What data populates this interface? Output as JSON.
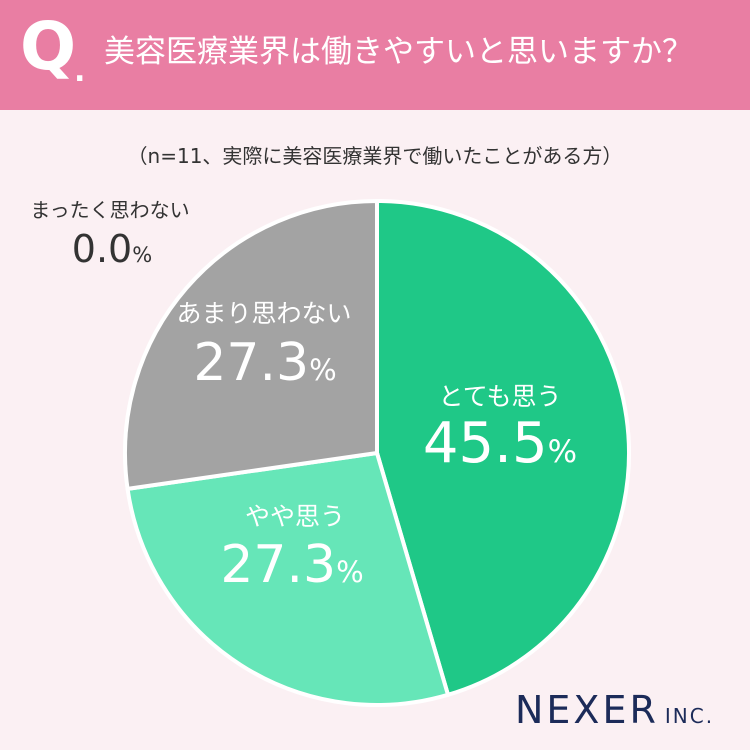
{
  "header": {
    "q_label": "Q",
    "q_dot": ".",
    "question": "美容医療業界は働きやすいと思いますか？"
  },
  "subtitle": "（n=11、実際に美容医療業界で働いたことがある方）",
  "brand": {
    "name": "NEXER",
    "suffix": "INC."
  },
  "colors": {
    "header_bg": "#e97ea3",
    "page_bg": "#fbf0f3",
    "label_dark": "#333333",
    "label_light": "#ffffff"
  },
  "chart_data": {
    "type": "pie",
    "unit": "%",
    "slices": [
      {
        "label": "とても思う",
        "value": 45.5,
        "display": "45.5",
        "color": "#1fc887"
      },
      {
        "label": "やや思う",
        "value": 27.3,
        "display": "27.3",
        "color": "#66e6b8"
      },
      {
        "label": "あまり思わない",
        "value": 27.3,
        "display": "27.3",
        "color": "#a3a3a3"
      },
      {
        "label": "まったく思わない",
        "value": 0.0,
        "display": "0.0",
        "color": "#cccccc"
      }
    ]
  }
}
